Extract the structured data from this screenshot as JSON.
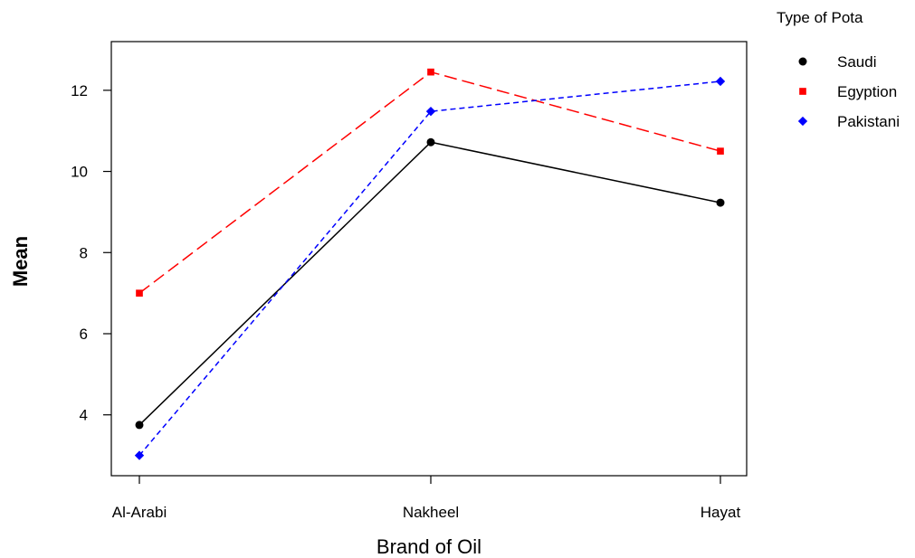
{
  "chart_data": {
    "type": "line",
    "title": "",
    "xlabel": "Brand of Oil",
    "ylabel": "Mean",
    "categories": [
      "Al-Arabi",
      "Nakheel",
      "Hayat"
    ],
    "ylim": [
      2.5,
      13.2
    ],
    "yticks": [
      4,
      6,
      8,
      10,
      12
    ],
    "grid": false,
    "legend": {
      "title": "Type of Pota",
      "placement": "top-right outside"
    },
    "series": [
      {
        "name": "Saudi",
        "values": [
          3.75,
          10.72,
          9.23
        ],
        "color": "#000000",
        "marker": "circle",
        "dash": "solid"
      },
      {
        "name": "Egyption",
        "values": [
          7.0,
          12.45,
          10.5
        ],
        "color": "#ff0000",
        "marker": "square",
        "dash": "dashed"
      },
      {
        "name": "Pakistani",
        "values": [
          3.0,
          11.48,
          12.22
        ],
        "color": "#0000ff",
        "marker": "diamond",
        "dash": "dotted-dash"
      }
    ]
  }
}
